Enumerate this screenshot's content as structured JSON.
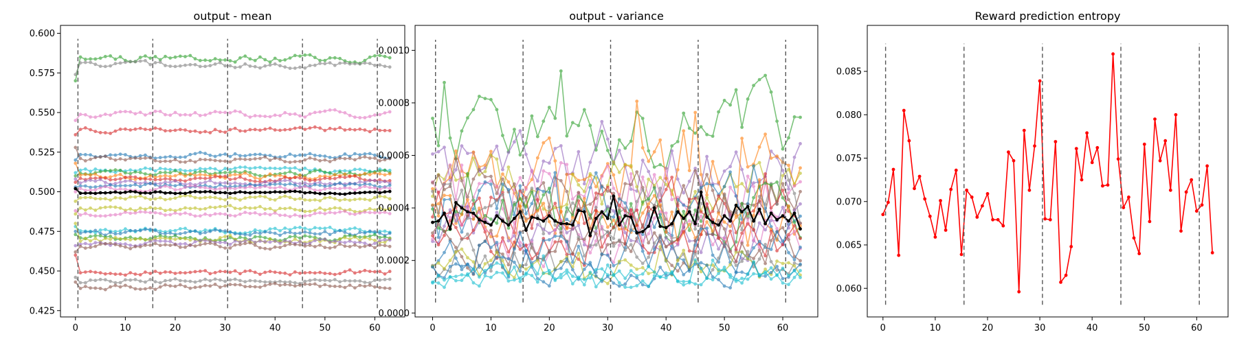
{
  "chart_data": [
    {
      "type": "line",
      "title": "output - mean",
      "xlabel": "",
      "ylabel": "",
      "xlim": [
        -3,
        66
      ],
      "ylim": [
        0.421,
        0.605
      ],
      "xticks": [
        0,
        10,
        20,
        30,
        40,
        50,
        60
      ],
      "yticks": [
        0.425,
        0.45,
        0.475,
        0.5,
        0.525,
        0.55,
        0.575,
        0.6
      ],
      "ytick_labels": [
        "0.425",
        "0.450",
        "0.475",
        "0.500",
        "0.525",
        "0.550",
        "0.575",
        "0.600"
      ],
      "vlines": [
        0.5,
        15.5,
        30.5,
        45.5,
        60.5
      ],
      "vline_range": [
        0.4265,
        0.5965
      ],
      "grid": false,
      "background_series": [
        {
          "level": 0.584,
          "color": "#2ca02c",
          "amp": 0.0018,
          "seed": 1,
          "start": 0.57
        },
        {
          "level": 0.58,
          "color": "#7f7f7f",
          "amp": 0.0014,
          "seed": 2,
          "start": 0.574
        },
        {
          "level": 0.549,
          "color": "#e377c2",
          "amp": 0.0016,
          "seed": 3,
          "start": 0.545
        },
        {
          "level": 0.539,
          "color": "#d62728",
          "amp": 0.0012,
          "seed": 4,
          "start": 0.536
        },
        {
          "level": 0.523,
          "color": "#1f77b4",
          "amp": 0.0014,
          "seed": 5,
          "start": 0.52
        },
        {
          "level": 0.52,
          "color": "#8c564b",
          "amp": 0.0014,
          "seed": 6,
          "start": 0.528
        },
        {
          "level": 0.514,
          "color": "#17becf",
          "amp": 0.0013,
          "seed": 7,
          "start": 0.512
        },
        {
          "level": 0.512,
          "color": "#2ca02c",
          "amp": 0.0013,
          "seed": 8,
          "start": 0.51
        },
        {
          "level": 0.51,
          "color": "#ff7f0e",
          "amp": 0.0016,
          "seed": 9,
          "start": 0.518
        },
        {
          "level": 0.508,
          "color": "#d62728",
          "amp": 0.0013,
          "seed": 10,
          "start": 0.506
        },
        {
          "level": 0.506,
          "color": "#9467bd",
          "amp": 0.0013,
          "seed": 11,
          "start": 0.508
        },
        {
          "level": 0.504,
          "color": "#1f77b4",
          "amp": 0.0012,
          "seed": 12,
          "start": 0.503
        },
        {
          "level": 0.502,
          "color": "#e377c2",
          "amp": 0.0012,
          "seed": 13,
          "start": 0.5
        },
        {
          "level": 0.496,
          "color": "#bcbd22",
          "amp": 0.0012,
          "seed": 14,
          "start": 0.494
        },
        {
          "level": 0.489,
          "color": "#bcbd22",
          "amp": 0.0014,
          "seed": 15,
          "start": 0.486
        },
        {
          "level": 0.486,
          "color": "#e377c2",
          "amp": 0.0012,
          "seed": 16,
          "start": 0.488
        },
        {
          "level": 0.476,
          "color": "#17becf",
          "amp": 0.0014,
          "seed": 17,
          "start": 0.478
        },
        {
          "level": 0.474,
          "color": "#1f77b4",
          "amp": 0.0015,
          "seed": 18,
          "start": 0.475
        },
        {
          "level": 0.471,
          "color": "#2ca02c",
          "amp": 0.0016,
          "seed": 19,
          "start": 0.473
        },
        {
          "level": 0.47,
          "color": "#bcbd22",
          "amp": 0.0016,
          "seed": 20,
          "start": 0.48
        },
        {
          "level": 0.468,
          "color": "#9467bd",
          "amp": 0.0016,
          "seed": 21,
          "start": 0.466
        },
        {
          "level": 0.466,
          "color": "#8c564b",
          "amp": 0.0015,
          "seed": 22,
          "start": 0.462
        },
        {
          "level": 0.449,
          "color": "#d62728",
          "amp": 0.0014,
          "seed": 23,
          "start": 0.46
        },
        {
          "level": 0.444,
          "color": "#7f7f7f",
          "amp": 0.0012,
          "seed": 24,
          "start": 0.446
        },
        {
          "level": 0.44,
          "color": "#8c564b",
          "amp": 0.0013,
          "seed": 25,
          "start": 0.443
        }
      ],
      "highlight_series": {
        "level": 0.4995,
        "color": "#000000",
        "amp": 0.0006,
        "seed": 26,
        "start": 0.502
      }
    },
    {
      "type": "line",
      "title": "output - variance",
      "xlabel": "",
      "ylabel": "",
      "xlim": [
        -3,
        66
      ],
      "ylim": [
        -1.5e-05,
        0.001095
      ],
      "xticks": [
        0,
        10,
        20,
        30,
        40,
        50,
        60
      ],
      "yticks": [
        0.0,
        0.0002,
        0.0004,
        0.0006,
        0.0008,
        0.001
      ],
      "ytick_labels": [
        "0.0000",
        "0.0002",
        "0.0004",
        "0.0006",
        "0.0008",
        "0.0010"
      ],
      "vlines": [
        0.5,
        15.5,
        30.5,
        45.5,
        60.5
      ],
      "vline_range": [
        4e-05,
        0.00104
      ],
      "grid": false,
      "background_series": [
        {
          "level": 0.00072,
          "color": "#2ca02c",
          "amp": 0.00012,
          "seed": 31
        },
        {
          "level": 0.00055,
          "color": "#9467bd",
          "amp": 9e-05,
          "seed": 32
        },
        {
          "level": 0.00052,
          "color": "#ff7f0e",
          "amp": 0.0001,
          "seed": 33
        },
        {
          "level": 0.00049,
          "color": "#bcbd22",
          "amp": 9e-05,
          "seed": 34
        },
        {
          "level": 0.00046,
          "color": "#e377c2",
          "amp": 0.0001,
          "seed": 35
        },
        {
          "level": 0.00044,
          "color": "#8c564b",
          "amp": 8e-05,
          "seed": 36
        },
        {
          "level": 0.00042,
          "color": "#1f77b4",
          "amp": 9e-05,
          "seed": 37
        },
        {
          "level": 0.0004,
          "color": "#d62728",
          "amp": 8e-05,
          "seed": 38
        },
        {
          "level": 0.00038,
          "color": "#7f7f7f",
          "amp": 8e-05,
          "seed": 39
        },
        {
          "level": 0.00036,
          "color": "#2ca02c",
          "amp": 8e-05,
          "seed": 40
        },
        {
          "level": 0.00034,
          "color": "#ff7f0e",
          "amp": 8e-05,
          "seed": 41
        },
        {
          "level": 0.00032,
          "color": "#9467bd",
          "amp": 7e-05,
          "seed": 42
        },
        {
          "level": 0.0003,
          "color": "#e377c2",
          "amp": 8e-05,
          "seed": 43
        },
        {
          "level": 0.00028,
          "color": "#d62728",
          "amp": 7e-05,
          "seed": 44
        },
        {
          "level": 0.00026,
          "color": "#8c564b",
          "amp": 7e-05,
          "seed": 45
        },
        {
          "level": 0.00024,
          "color": "#1f77b4",
          "amp": 7e-05,
          "seed": 46
        },
        {
          "level": 0.00021,
          "color": "#7f7f7f",
          "amp": 6e-05,
          "seed": 47
        },
        {
          "level": 0.00018,
          "color": "#bcbd22",
          "amp": 5e-05,
          "seed": 48
        },
        {
          "level": 0.00016,
          "color": "#1f77b4",
          "amp": 4e-05,
          "seed": 49
        },
        {
          "level": 0.00014,
          "color": "#17becf",
          "amp": 3e-05,
          "seed": 50
        },
        {
          "level": 0.00013,
          "color": "#17becf",
          "amp": 3e-05,
          "seed": 51
        }
      ],
      "highlight_series": {
        "color": "#000000",
        "values": [
          0.000345,
          0.00035,
          0.00038,
          0.00032,
          0.00042,
          0.0004,
          0.000385,
          0.00038,
          0.000355,
          0.000345,
          0.000335,
          0.00037,
          0.00035,
          0.000335,
          0.00036,
          0.000385,
          0.000315,
          0.000365,
          0.00036,
          0.00035,
          0.00037,
          0.00035,
          0.00034,
          0.00034,
          0.000335,
          0.00039,
          0.000385,
          0.000295,
          0.00036,
          0.000385,
          0.00036,
          0.000445,
          0.000335,
          0.00037,
          0.000365,
          0.000305,
          0.00031,
          0.00033,
          0.0004,
          0.00033,
          0.000325,
          0.00034,
          0.000385,
          0.00036,
          0.000385,
          0.00034,
          0.00046,
          0.000365,
          0.000345,
          0.000335,
          0.00037,
          0.00035,
          0.00041,
          0.000385,
          0.000405,
          0.00035,
          0.000395,
          0.00034,
          0.00038,
          0.000355,
          0.00037,
          0.00035,
          0.00038,
          0.00032
        ]
      }
    },
    {
      "type": "line",
      "title": "Reward prediction entropy",
      "xlabel": "",
      "ylabel": "",
      "xlim": [
        -3,
        66
      ],
      "ylim": [
        0.0567,
        0.0903
      ],
      "xticks": [
        0,
        10,
        20,
        30,
        40,
        50,
        60
      ],
      "yticks": [
        0.06,
        0.065,
        0.07,
        0.075,
        0.08,
        0.085
      ],
      "ytick_labels": [
        "0.060",
        "0.065",
        "0.070",
        "0.075",
        "0.080",
        "0.085"
      ],
      "vlines": [
        0.5,
        15.5,
        30.5,
        45.5,
        60.5
      ],
      "vline_range": [
        0.0581,
        0.0882
      ],
      "grid": false,
      "series": [
        {
          "color": "#ff0000",
          "values": [
            0.0685,
            0.0699,
            0.0737,
            0.0638,
            0.0805,
            0.077,
            0.0715,
            0.0729,
            0.0703,
            0.0683,
            0.0659,
            0.0701,
            0.0667,
            0.0714,
            0.0736,
            0.0639,
            0.0713,
            0.0705,
            0.0682,
            0.0695,
            0.0709,
            0.0679,
            0.0679,
            0.0672,
            0.0757,
            0.0747,
            0.0596,
            0.0782,
            0.0713,
            0.0764,
            0.0839,
            0.068,
            0.0679,
            0.0769,
            0.0607,
            0.0615,
            0.0648,
            0.0761,
            0.0725,
            0.0779,
            0.0745,
            0.0762,
            0.0718,
            0.0719,
            0.087,
            0.0749,
            0.0693,
            0.0705,
            0.0658,
            0.064,
            0.0766,
            0.0677,
            0.0795,
            0.0747,
            0.077,
            0.0713,
            0.08,
            0.0666,
            0.0711,
            0.0725,
            0.0689,
            0.0696,
            0.0741,
            0.0641
          ]
        }
      ]
    }
  ]
}
